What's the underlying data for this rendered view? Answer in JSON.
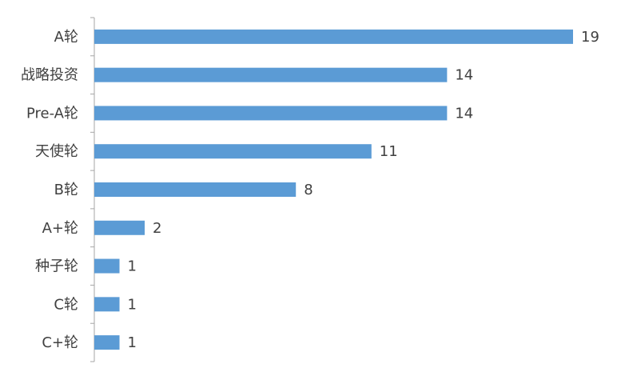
{
  "chart_data": {
    "type": "barh",
    "categories": [
      "A轮",
      "战略投资",
      "Pre-A轮",
      "天使轮",
      "B轮",
      "A+轮",
      "种子轮",
      "C轮",
      "C+轮"
    ],
    "values": [
      19,
      14,
      14,
      11,
      8,
      2,
      1,
      1,
      1
    ],
    "color": "#5b9bd5"
  }
}
